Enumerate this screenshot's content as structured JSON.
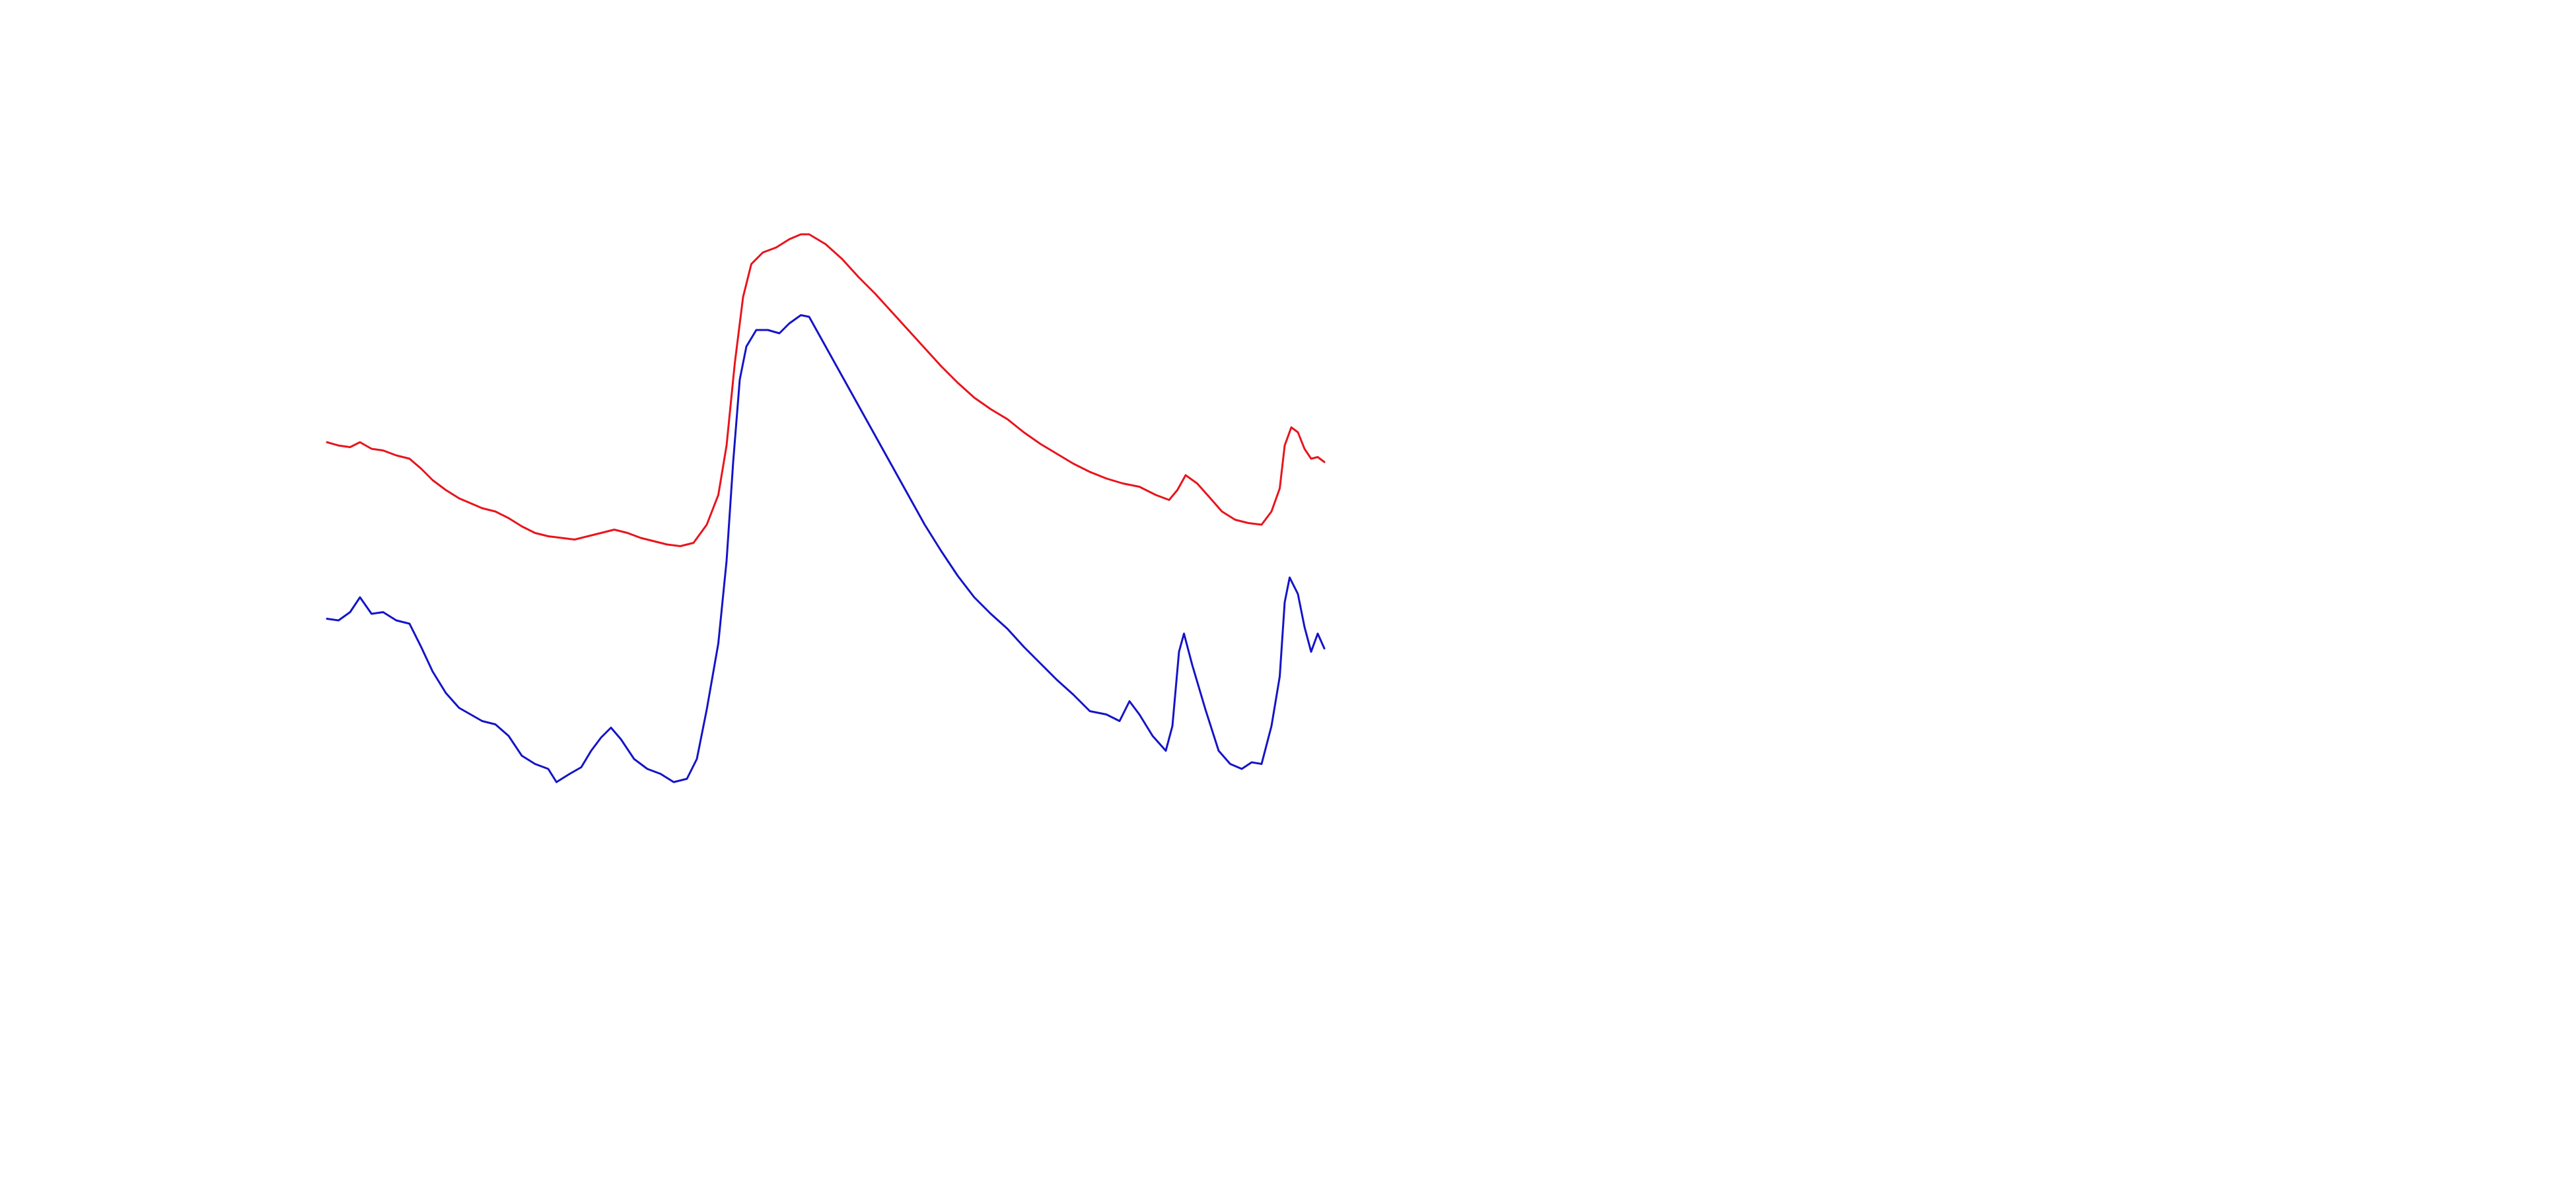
{
  "chart_data": {
    "type": "line",
    "xlim": [
      0,
      1560
    ],
    "ylim": [
      0,
      720
    ],
    "series": [
      {
        "color": "#e8141c",
        "x": [
          198,
          205,
          212,
          218,
          225,
          232,
          240,
          248,
          255,
          262,
          270,
          278,
          285,
          292,
          300,
          308,
          316,
          324,
          332,
          340,
          348,
          356,
          364,
          372,
          380,
          388,
          396,
          404,
          412,
          420,
          428,
          435,
          440,
          445,
          450,
          455,
          462,
          470,
          478,
          485,
          490,
          500,
          510,
          520,
          530,
          540,
          550,
          560,
          570,
          580,
          590,
          600,
          610,
          620,
          630,
          640,
          650,
          660,
          670,
          680,
          690,
          700,
          708,
          713,
          718,
          725,
          733,
          740,
          748,
          756,
          764,
          770,
          775,
          778,
          782,
          786,
          790,
          794,
          798,
          802
        ],
        "values": [
          452,
          450,
          449,
          452,
          448,
          447,
          444,
          442,
          436,
          429,
          423,
          418,
          415,
          412,
          410,
          406,
          401,
          397,
          395,
          394,
          393,
          395,
          397,
          399,
          397,
          394,
          392,
          390,
          389,
          391,
          402,
          420,
          450,
          500,
          540,
          560,
          567,
          570,
          575,
          578,
          578,
          572,
          563,
          552,
          542,
          531,
          520,
          509,
          498,
          488,
          479,
          472,
          466,
          458,
          451,
          445,
          439,
          434,
          430,
          427,
          425,
          420,
          417,
          423,
          432,
          427,
          418,
          410,
          405,
          403,
          402,
          410,
          424,
          450,
          461,
          458,
          448,
          442,
          443,
          440
        ]
      },
      {
        "color": "#1414c8",
        "x": [
          198,
          205,
          212,
          218,
          225,
          232,
          240,
          248,
          255,
          262,
          270,
          278,
          285,
          292,
          300,
          308,
          316,
          324,
          332,
          337,
          345,
          352,
          358,
          364,
          370,
          376,
          384,
          392,
          400,
          408,
          416,
          422,
          428,
          435,
          440,
          444,
          448,
          452,
          458,
          465,
          472,
          478,
          485,
          490,
          500,
          510,
          520,
          530,
          540,
          550,
          560,
          570,
          580,
          590,
          600,
          610,
          620,
          630,
          640,
          650,
          660,
          670,
          678,
          684,
          690,
          698,
          706,
          710,
          714,
          717,
          722,
          730,
          738,
          745,
          752,
          758,
          764,
          770,
          775,
          778,
          781,
          786,
          790,
          794,
          798,
          802
        ],
        "values": [
          345,
          344,
          349,
          358,
          348,
          349,
          344,
          342,
          328,
          313,
          300,
          291,
          287,
          283,
          281,
          274,
          262,
          257,
          254,
          246,
          251,
          255,
          265,
          273,
          279,
          272,
          260,
          254,
          251,
          246,
          248,
          260,
          290,
          330,
          380,
          440,
          490,
          510,
          520,
          520,
          518,
          524,
          529,
          528,
          510,
          492,
          474,
          456,
          438,
          420,
          402,
          386,
          371,
          358,
          348,
          339,
          328,
          318,
          308,
          299,
          289,
          287,
          283,
          295,
          287,
          274,
          265,
          280,
          325,
          336,
          317,
          290,
          265,
          257,
          254,
          258,
          257,
          280,
          310,
          355,
          370,
          360,
          340,
          325,
          336,
          327
        ]
      }
    ]
  }
}
